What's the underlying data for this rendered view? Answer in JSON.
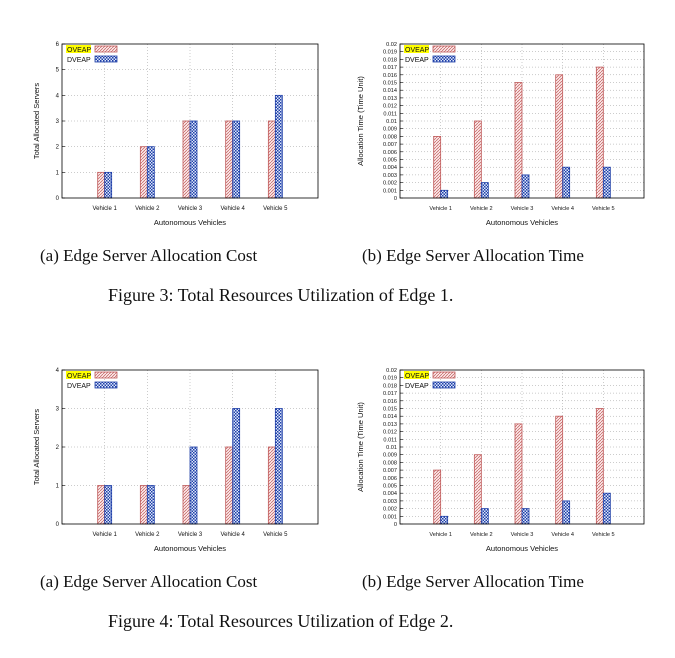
{
  "colors": {
    "oveap_fill": "#f2c4c4",
    "oveap_stroke": "#c05a5a",
    "dveap_fill": "#7fa0e0",
    "dveap_stroke": "#1f3fa8",
    "legend_highlight": "#ffff00",
    "grid": "#999999"
  },
  "figures": [
    {
      "caption": "Figure 3:  Total Resources Utilization of Edge 1.",
      "subcaption_a": "(a) Edge Server Allocation Cost",
      "subcaption_b": "(b) Edge Server Allocation Time"
    },
    {
      "caption": "Figure 4:  Total Resources Utilization of Edge 2.",
      "subcaption_a": "(a) Edge Server Allocation Cost",
      "subcaption_b": "(b) Edge Server Allocation Time"
    }
  ],
  "chart_data": [
    {
      "type": "bar",
      "categories": [
        "Vehicle 1",
        "Vehicle 2",
        "Vehicle 3",
        "Vehicle 4",
        "Vehicle 5"
      ],
      "series": [
        {
          "name": "OVEAP",
          "values": [
            1,
            2,
            3,
            3,
            3
          ]
        },
        {
          "name": "DVEAP",
          "values": [
            1,
            2,
            3,
            3,
            4
          ]
        }
      ],
      "xlabel": "Autonomous Vehicles",
      "ylabel": "Total Allocated Servers",
      "ylim": [
        0,
        6
      ],
      "yticks": [
        "0",
        "1",
        "2",
        "3",
        "4",
        "5",
        "6"
      ],
      "grid": true,
      "legend": "top-left"
    },
    {
      "type": "bar",
      "categories": [
        "Vehicle 1",
        "Vehicle 2",
        "Vehicle 3",
        "Vehicle 4",
        "Vehicle 5"
      ],
      "series": [
        {
          "name": "OVEAP",
          "values": [
            0.008,
            0.01,
            0.015,
            0.016,
            0.017
          ]
        },
        {
          "name": "DVEAP",
          "values": [
            0.001,
            0.002,
            0.003,
            0.004,
            0.004
          ]
        }
      ],
      "xlabel": "Autonomous Vehicles",
      "ylabel": "Allocation Time (Time Unit)",
      "ylim": [
        0,
        0.02
      ],
      "yticks": [
        "0",
        "0.001",
        "0.002",
        "0.003",
        "0.004",
        "0.005",
        "0.006",
        "0.007",
        "0.008",
        "0.009",
        "0.01",
        "0.011",
        "0.012",
        "0.013",
        "0.014",
        "0.015",
        "0.016",
        "0.017",
        "0.018",
        "0.019",
        "0.02"
      ],
      "grid": true,
      "legend": "top-left"
    },
    {
      "type": "bar",
      "categories": [
        "Vehicle 1",
        "Vehicle 2",
        "Vehicle 3",
        "Vehicle 4",
        "Vehicle 5"
      ],
      "series": [
        {
          "name": "OVEAP",
          "values": [
            1,
            1,
            1,
            2,
            2
          ]
        },
        {
          "name": "DVEAP",
          "values": [
            1,
            1,
            2,
            3,
            3
          ]
        }
      ],
      "xlabel": "Autonomous Vehicles",
      "ylabel": "Total Allocated Servers",
      "ylim": [
        0,
        4
      ],
      "yticks": [
        "0",
        "1",
        "2",
        "3",
        "4"
      ],
      "grid": true,
      "legend": "top-left"
    },
    {
      "type": "bar",
      "categories": [
        "Vehicle 1",
        "Vehicle 2",
        "Vehicle 3",
        "Vehicle 4",
        "Vehicle 5"
      ],
      "series": [
        {
          "name": "OVEAP",
          "values": [
            0.007,
            0.009,
            0.013,
            0.014,
            0.015
          ]
        },
        {
          "name": "DVEAP",
          "values": [
            0.001,
            0.002,
            0.002,
            0.003,
            0.004
          ]
        }
      ],
      "xlabel": "Autonomous Vehicles",
      "ylabel": "Allocation Time (Time Unit)",
      "ylim": [
        0,
        0.02
      ],
      "yticks": [
        "0",
        "0.001",
        "0.002",
        "0.003",
        "0.004",
        "0.005",
        "0.006",
        "0.007",
        "0.008",
        "0.009",
        "0.01",
        "0.011",
        "0.012",
        "0.013",
        "0.014",
        "0.015",
        "0.016",
        "0.017",
        "0.018",
        "0.019",
        "0.02"
      ],
      "grid": true,
      "legend": "top-left"
    }
  ]
}
